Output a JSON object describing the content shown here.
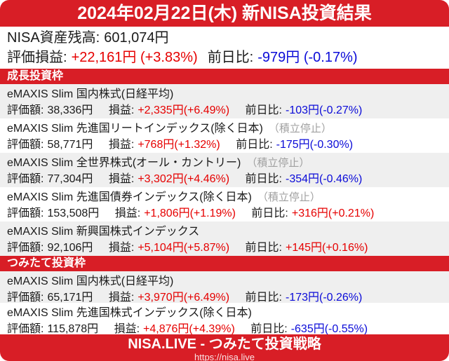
{
  "colors": {
    "brand_red": "#d81e26",
    "gain_red": "#e60000",
    "loss_blue": "#0b0bd8",
    "suspend_gray": "#a0a0a0",
    "row_alt_bg": "#efefef",
    "text_dark": "#1a1a1a"
  },
  "header": {
    "title": "2024年02月22日(木) 新NISA投資結果"
  },
  "summary": {
    "balance_label": "NISA資産残高:",
    "balance_value": "601,074円",
    "pl_label": "評価損益:",
    "pl_value": "+22,161円 (+3.83%)",
    "dod_label": "前日比:",
    "dod_value": "-979円 (-0.17%)"
  },
  "labels": {
    "value": "評価額:",
    "pl": "損益:",
    "dod": "前日比:"
  },
  "sections": [
    {
      "title": "成長投資枠",
      "funds": [
        {
          "name": "eMAXIS Slim 国内株式(日経平均)",
          "suspended": "",
          "value": "38,336円",
          "pl": "+2,335円(+6.49%)",
          "dod": "-103円(-0.27%)"
        },
        {
          "name": "eMAXIS Slim 先進国リートインデックス(除く日本)",
          "suspended": "（積立停止）",
          "value": "58,771円",
          "pl": "+768円(+1.32%)",
          "dod": "-175円(-0.30%)"
        },
        {
          "name": "eMAXIS Slim 全世界株式(オール・カントリー)",
          "suspended": "（積立停止）",
          "value": "77,304円",
          "pl": "+3,302円(+4.46%)",
          "dod": "-354円(-0.46%)"
        },
        {
          "name": "eMAXIS Slim 先進国債券インデックス(除く日本)",
          "suspended": "（積立停止）",
          "value": "153,508円",
          "pl": "+1,806円(+1.19%)",
          "dod": "+316円(+0.21%)"
        },
        {
          "name": "eMAXIS Slim 新興国株式インデックス",
          "suspended": "",
          "value": "92,106円",
          "pl": "+5,104円(+5.87%)",
          "dod": "+145円(+0.16%)"
        }
      ]
    },
    {
      "title": "つみたて投資枠",
      "funds": [
        {
          "name": "eMAXIS Slim 国内株式(日経平均)",
          "suspended": "",
          "value": "65,171円",
          "pl": "+3,970円(+6.49%)",
          "dod": "-173円(-0.26%)"
        },
        {
          "name": "eMAXIS Slim 先進国株式インデックス(除く日本)",
          "suspended": "",
          "value": "115,878円",
          "pl": "+4,876円(+4.39%)",
          "dod": "-635円(-0.55%)"
        }
      ]
    }
  ],
  "footer": {
    "title": "NISA.LIVE - つみたて投資戦略",
    "url": "https://nisa.live"
  }
}
